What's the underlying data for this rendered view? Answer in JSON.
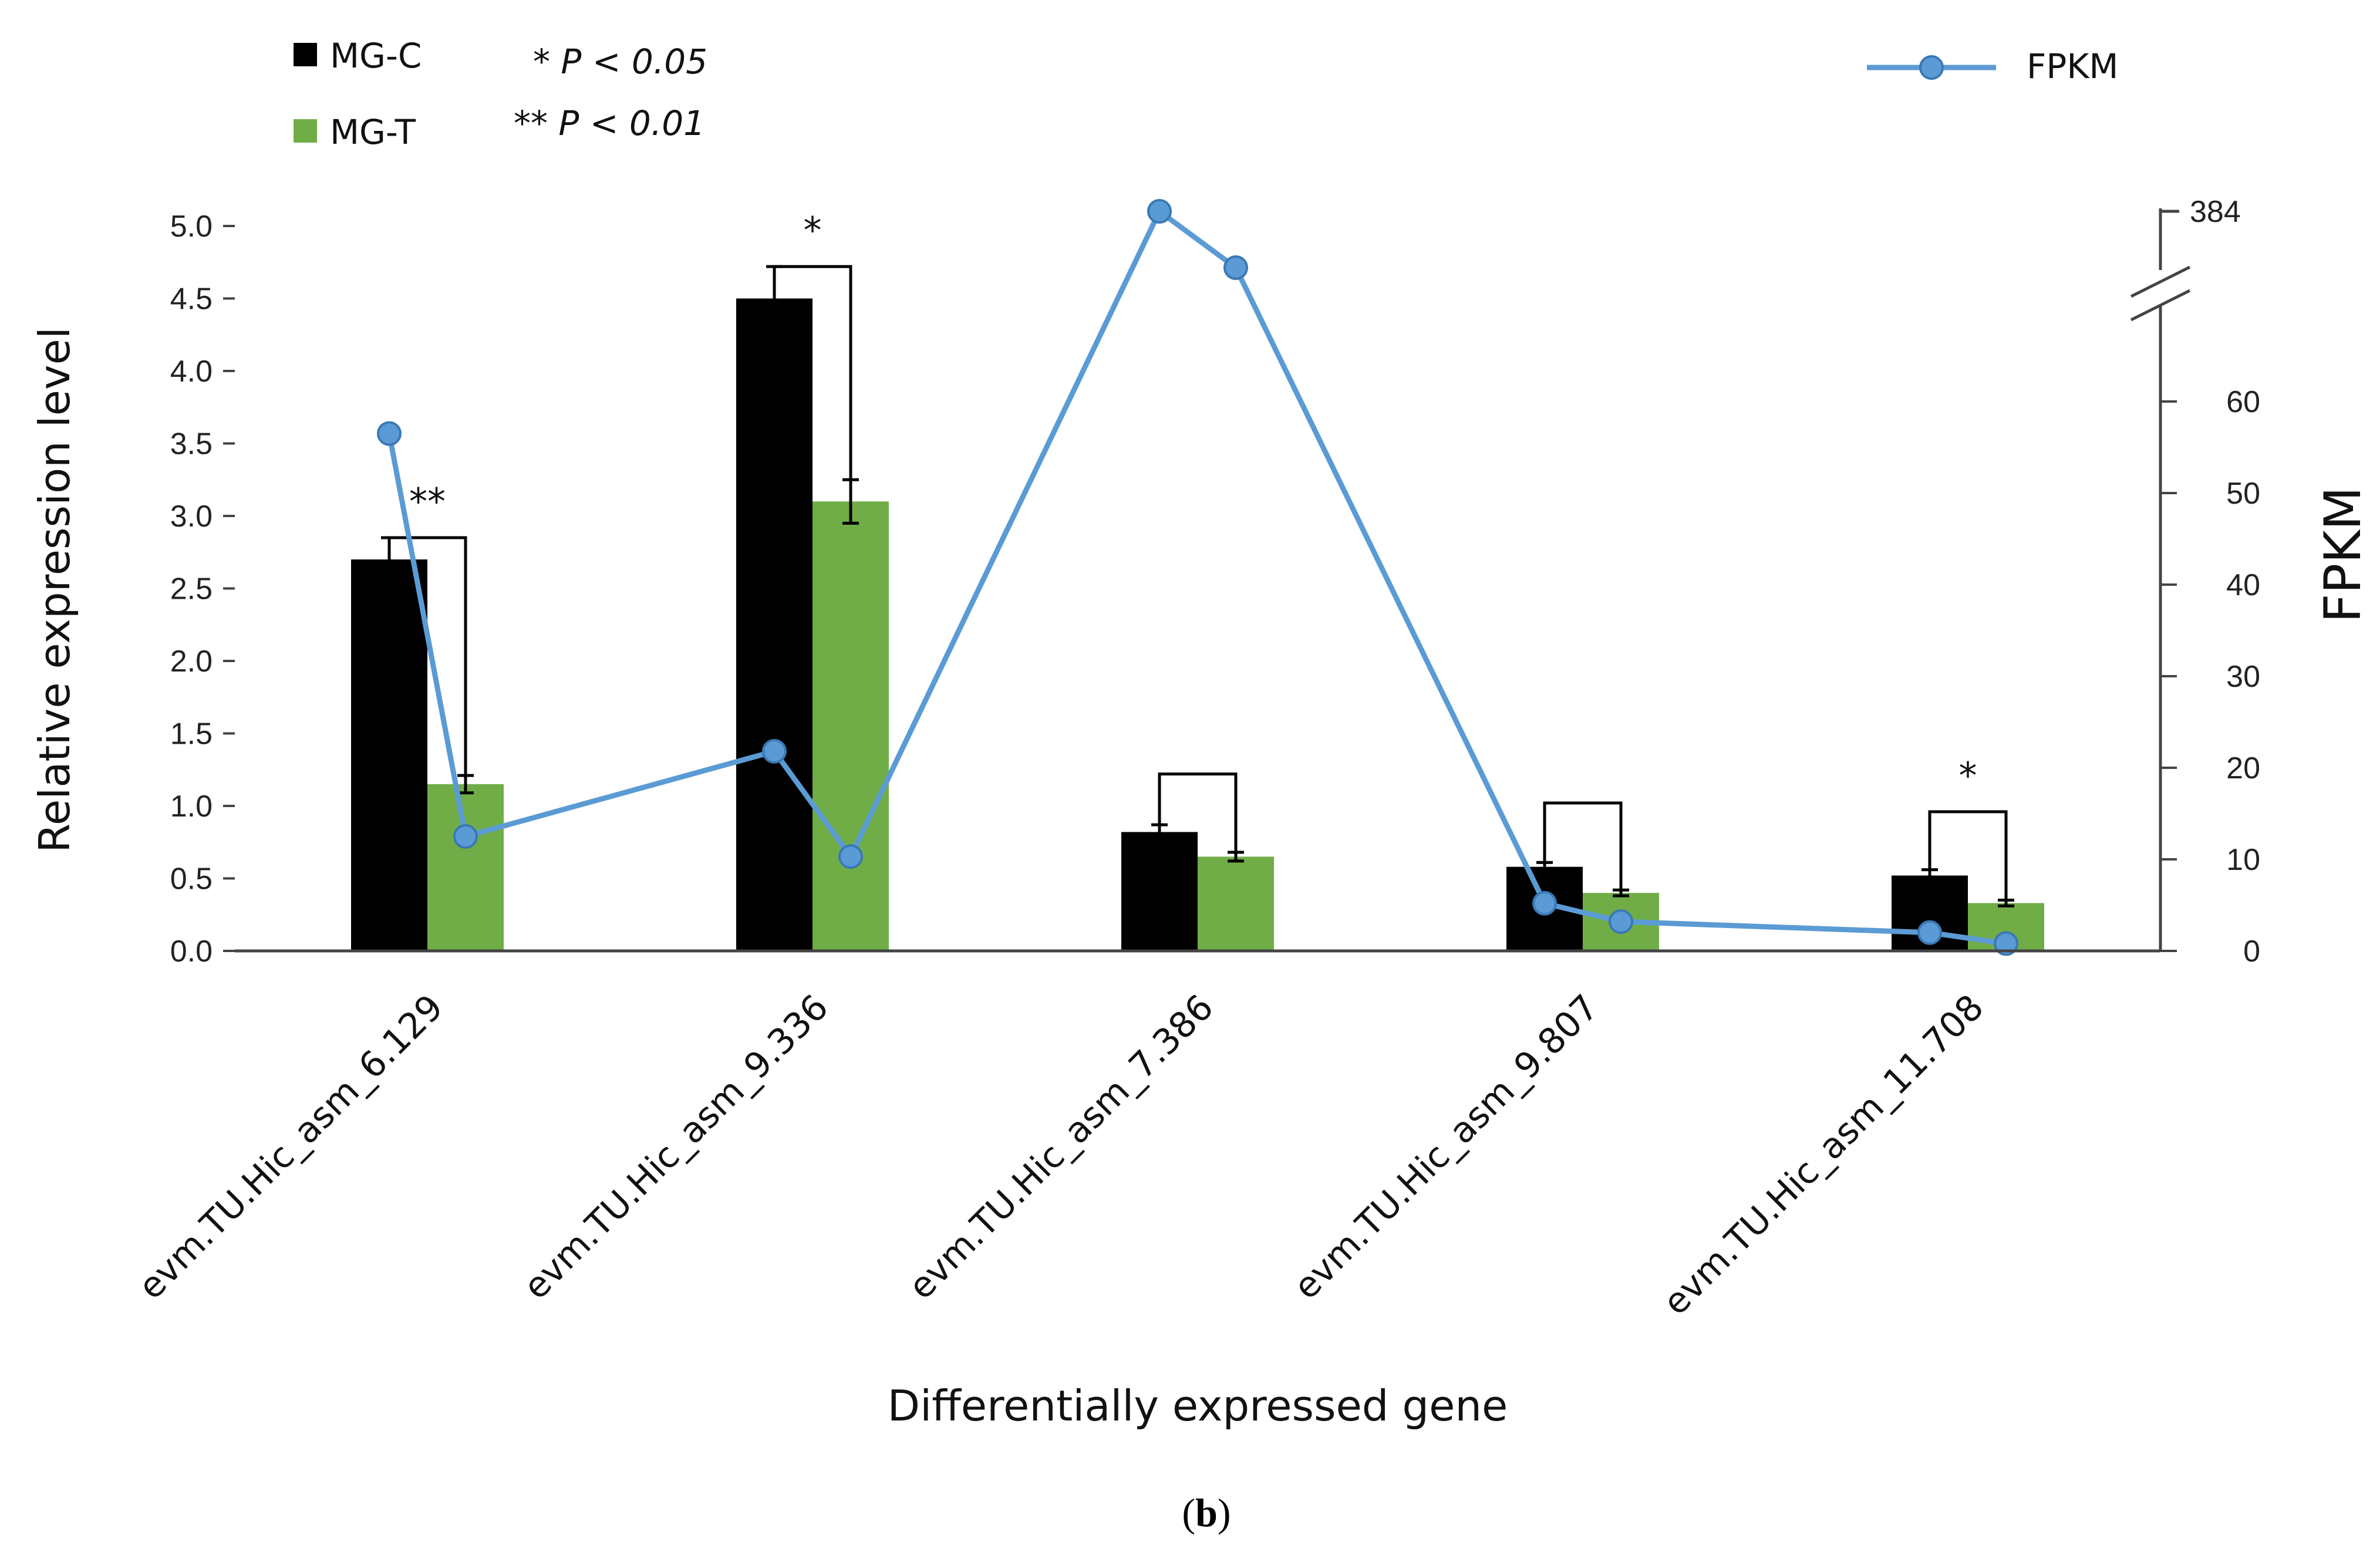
{
  "chart_data": {
    "type": "bar",
    "categories": [
      "evm.TU.Hic_asm_6.129",
      "evm.TU.Hic_asm_9.336",
      "evm.TU.Hic_asm_7.386",
      "evm.TU.Hic_asm_9.807",
      "evm.TU.Hic_asm_11.708"
    ],
    "series": [
      {
        "name": "MG-C",
        "color": "#000000",
        "values": [
          2.7,
          4.5,
          0.82,
          0.58,
          0.52
        ],
        "errors": [
          0.15,
          0.22,
          0.05,
          0.03,
          0.04
        ]
      },
      {
        "name": "MG-T",
        "color": "#70ad47",
        "values": [
          1.15,
          3.1,
          0.65,
          0.4,
          0.33
        ],
        "errors": [
          0.06,
          0.15,
          0.03,
          0.02,
          0.02
        ]
      }
    ],
    "line_series": {
      "name": "FPKM",
      "color": "#5b9bd5",
      "points": [
        {
          "category": 0,
          "pos": "C",
          "value": 56.5
        },
        {
          "category": 0,
          "pos": "T",
          "value": 12.5
        },
        {
          "category": 1,
          "pos": "C",
          "value": 21.8
        },
        {
          "category": 1,
          "pos": "T",
          "value": 10.3
        },
        {
          "category": 2,
          "pos": "C",
          "value": 384
        },
        {
          "category": 2,
          "pos": "T",
          "value": 372
        },
        {
          "category": 3,
          "pos": "C",
          "value": 5.2
        },
        {
          "category": 3,
          "pos": "T",
          "value": 3.2
        },
        {
          "category": 4,
          "pos": "C",
          "value": 2.0
        },
        {
          "category": 4,
          "pos": "T",
          "value": 0.8
        }
      ]
    },
    "significance": [
      "**",
      "*",
      "",
      "",
      "*"
    ],
    "brackets": [
      2.85,
      4.72,
      1.22,
      1.02,
      0.96
    ],
    "left_axis": {
      "label": "Relative expression level",
      "ylim": [
        0,
        5.0
      ],
      "ticks": [
        "0.0",
        "0.5",
        "1.0",
        "1.5",
        "2.0",
        "2.5",
        "3.0",
        "3.5",
        "4.0",
        "4.5",
        "5.0"
      ]
    },
    "right_axis": {
      "label": "FPKM",
      "ylim": [
        0,
        70
      ],
      "ticks": [
        "0",
        "10",
        "20",
        "30",
        "40",
        "50",
        "60"
      ],
      "break_label": "384"
    },
    "xlabel": "Differentially expressed gene",
    "legend": {
      "bar_c": "MG-C",
      "bar_t": "MG-T",
      "line": "FPKM",
      "p1": "* P < 0.05",
      "p2": "** P < 0.01"
    },
    "caption_open": "(",
    "caption_letter": "b",
    "caption_close": ")"
  }
}
